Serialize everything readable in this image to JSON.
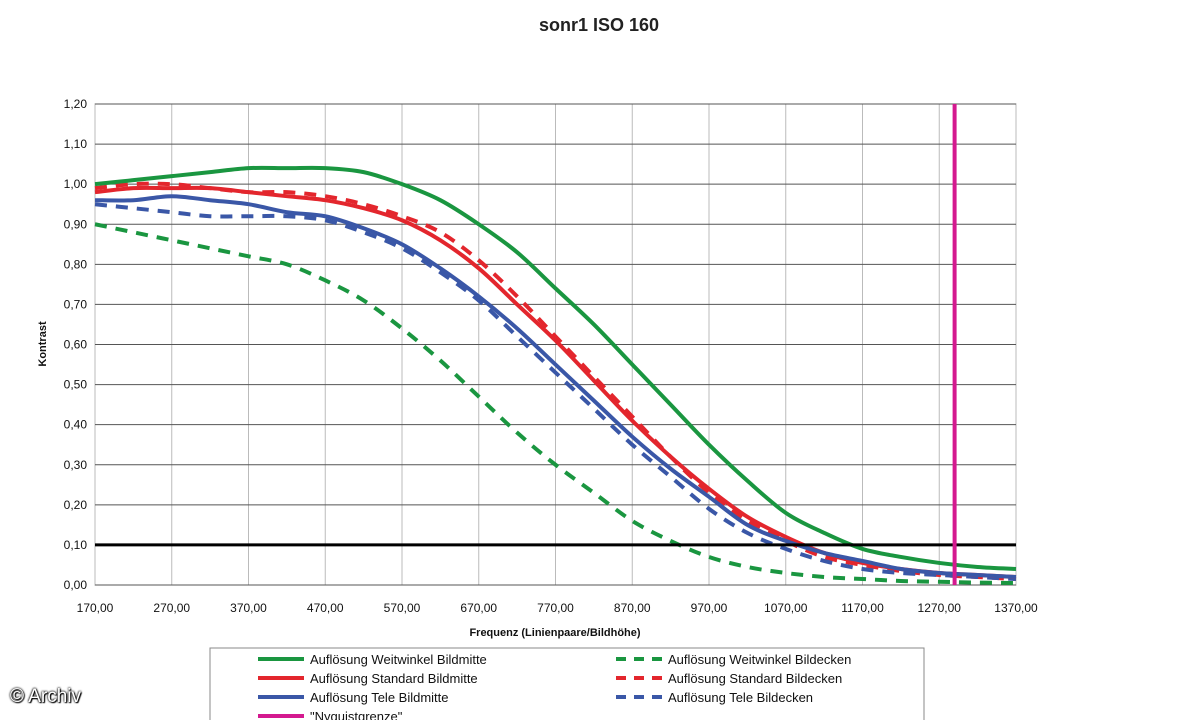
{
  "chart_data": {
    "type": "line",
    "title": "sonr1   ISO 160",
    "xlabel": "Frequenz (Linienpaare/Bildhöhe)",
    "ylabel": "Kontrast",
    "xlim": [
      170,
      1370
    ],
    "ylim": [
      0,
      1.2
    ],
    "x_ticks": [
      "170,00",
      "270,00",
      "370,00",
      "470,00",
      "570,00",
      "670,00",
      "770,00",
      "870,00",
      "970,00",
      "1070,00",
      "1170,00",
      "1270,00",
      "1370,00"
    ],
    "y_ticks": [
      "0,00",
      "0,10",
      "0,20",
      "0,30",
      "0,40",
      "0,50",
      "0,60",
      "0,70",
      "0,80",
      "0,90",
      "1,00",
      "1,10",
      "1,20"
    ],
    "grid": true,
    "x": [
      170,
      220,
      270,
      320,
      370,
      420,
      470,
      520,
      570,
      620,
      670,
      720,
      770,
      820,
      870,
      920,
      970,
      1020,
      1070,
      1120,
      1170,
      1220,
      1270,
      1320,
      1370
    ],
    "series": [
      {
        "name": "Auflösung Weitwinkel Bildmitte",
        "color": "#1a9640",
        "style": "solid",
        "values": [
          1.0,
          1.01,
          1.02,
          1.03,
          1.04,
          1.04,
          1.04,
          1.03,
          1.0,
          0.96,
          0.9,
          0.83,
          0.74,
          0.65,
          0.55,
          0.45,
          0.35,
          0.26,
          0.18,
          0.13,
          0.09,
          0.07,
          0.055,
          0.045,
          0.04
        ]
      },
      {
        "name": "Auflösung Weitwinkel Bildecken",
        "color": "#1a9640",
        "style": "dashed",
        "values": [
          0.9,
          0.88,
          0.86,
          0.84,
          0.82,
          0.8,
          0.76,
          0.71,
          0.64,
          0.56,
          0.47,
          0.38,
          0.3,
          0.23,
          0.16,
          0.11,
          0.07,
          0.045,
          0.03,
          0.02,
          0.015,
          0.01,
          0.008,
          0.006,
          0.005
        ]
      },
      {
        "name": "Auflösung Standard Bildmitte",
        "color": "#e3262d",
        "style": "solid",
        "values": [
          0.98,
          0.99,
          0.99,
          0.99,
          0.98,
          0.97,
          0.96,
          0.94,
          0.91,
          0.86,
          0.79,
          0.7,
          0.61,
          0.51,
          0.41,
          0.32,
          0.24,
          0.17,
          0.12,
          0.08,
          0.055,
          0.04,
          0.03,
          0.025,
          0.02
        ]
      },
      {
        "name": "Auflösung Standard Bildecken",
        "color": "#e3262d",
        "style": "dashed",
        "values": [
          0.99,
          1.0,
          1.0,
          0.99,
          0.98,
          0.98,
          0.97,
          0.95,
          0.92,
          0.88,
          0.81,
          0.72,
          0.62,
          0.52,
          0.42,
          0.32,
          0.23,
          0.16,
          0.11,
          0.07,
          0.05,
          0.035,
          0.025,
          0.02,
          0.015
        ]
      },
      {
        "name": "Auflösung Tele Bildmitte",
        "color": "#3a57a7",
        "style": "solid",
        "values": [
          0.96,
          0.96,
          0.97,
          0.96,
          0.95,
          0.93,
          0.92,
          0.89,
          0.85,
          0.79,
          0.72,
          0.64,
          0.55,
          0.46,
          0.37,
          0.29,
          0.22,
          0.15,
          0.11,
          0.08,
          0.06,
          0.04,
          0.03,
          0.025,
          0.02
        ]
      },
      {
        "name": "Auflösung Tele Bildecken",
        "color": "#3a57a7",
        "style": "dashed",
        "values": [
          0.95,
          0.94,
          0.93,
          0.92,
          0.92,
          0.92,
          0.91,
          0.88,
          0.84,
          0.78,
          0.71,
          0.62,
          0.53,
          0.44,
          0.35,
          0.27,
          0.19,
          0.13,
          0.09,
          0.06,
          0.04,
          0.03,
          0.025,
          0.02,
          0.015
        ]
      }
    ],
    "nyquist": {
      "name": "\"Nyquistgrenze\"",
      "color": "#d4198f",
      "x": 1290
    },
    "threshold": {
      "y": 0.1,
      "color": "#000000"
    },
    "legend_position": "bottom"
  },
  "watermark": "© Archiv"
}
